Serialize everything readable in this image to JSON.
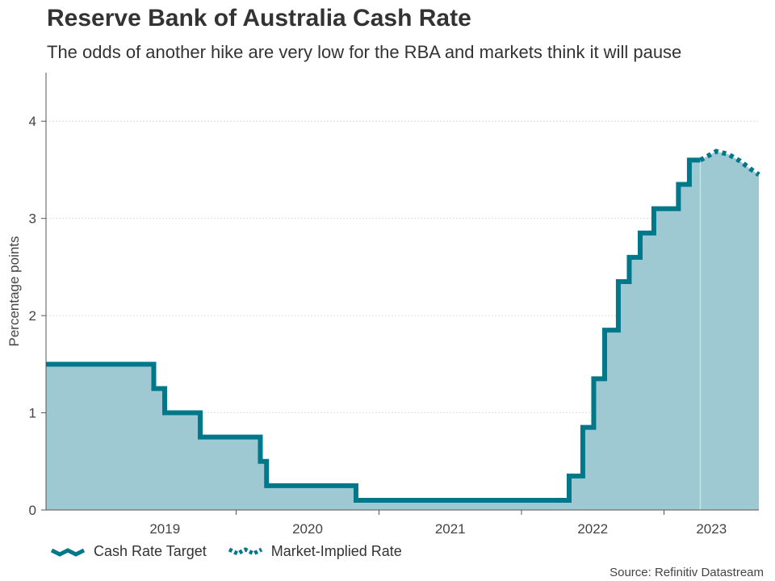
{
  "title": "Reserve Bank of Australia Cash Rate",
  "subtitle": "The odds of another hike are very low for the RBA and markets think it will pause",
  "source": "Source: Refinitiv Datastream",
  "colors": {
    "line": "#00788a",
    "area": "#9fc9d2",
    "grid": "#dddddd",
    "axis": "#555555"
  },
  "legend": [
    {
      "label": "Cash Rate Target",
      "icon": "solid-line-icon"
    },
    {
      "label": "Market-Implied Rate",
      "icon": "dotted-line-icon"
    }
  ],
  "chart_data": {
    "type": "line",
    "title": "Reserve Bank of Australia Cash Rate",
    "ylabel": "Percentage points",
    "ylim": [
      0,
      4.5
    ],
    "xlim": [
      "2018-09-01",
      "2023-09-01"
    ],
    "y_ticks": [
      0,
      1,
      2,
      3,
      4
    ],
    "x_ticks": [
      "2019",
      "2020",
      "2021",
      "2022",
      "2023"
    ],
    "grid": true,
    "legend_position": "bottom-left",
    "series": [
      {
        "name": "Cash Rate Target",
        "style": "step",
        "points": [
          [
            "2018-09-01",
            1.5
          ],
          [
            "2019-06-04",
            1.25
          ],
          [
            "2019-07-02",
            1.0
          ],
          [
            "2019-10-01",
            0.75
          ],
          [
            "2020-03-03",
            0.5
          ],
          [
            "2020-03-19",
            0.25
          ],
          [
            "2020-11-03",
            0.1
          ],
          [
            "2022-05-03",
            0.35
          ],
          [
            "2022-06-07",
            0.85
          ],
          [
            "2022-07-05",
            1.35
          ],
          [
            "2022-08-02",
            1.85
          ],
          [
            "2022-09-06",
            2.35
          ],
          [
            "2022-10-04",
            2.6
          ],
          [
            "2022-11-01",
            2.85
          ],
          [
            "2022-12-06",
            3.1
          ],
          [
            "2023-02-07",
            3.35
          ],
          [
            "2023-03-07",
            3.6
          ],
          [
            "2023-04-04",
            3.6
          ]
        ]
      },
      {
        "name": "Market-Implied Rate",
        "style": "dotted",
        "points": [
          [
            "2023-04-04",
            3.6
          ],
          [
            "2023-05-15",
            3.69
          ],
          [
            "2023-06-15",
            3.66
          ],
          [
            "2023-07-15",
            3.59
          ],
          [
            "2023-08-10",
            3.51
          ],
          [
            "2023-09-01",
            3.45
          ]
        ]
      }
    ]
  }
}
